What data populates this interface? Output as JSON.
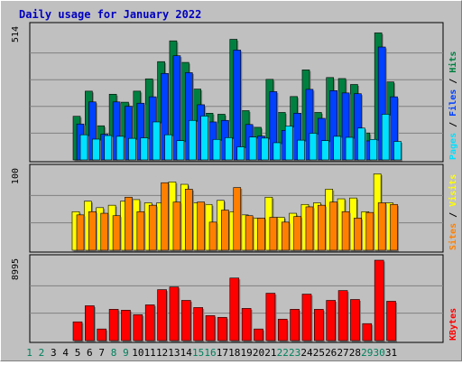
{
  "chart_data": {
    "type": "bar",
    "title": "Daily usage for January 2022",
    "colors": {
      "hits": "#008040",
      "files": "#0040ff",
      "pages": "#00e0ff",
      "visits": "#ffff00",
      "sites": "#ff8000",
      "kbytes": "#ff0000",
      "day_weekday": "#000000",
      "day_weekend": "#00805c"
    },
    "days": [
      {
        "label": "1",
        "weekend": true
      },
      {
        "label": "2",
        "weekend": true
      },
      {
        "label": "3",
        "weekend": false
      },
      {
        "label": "4",
        "weekend": false
      },
      {
        "label": "5",
        "weekend": false
      },
      {
        "label": "6",
        "weekend": false
      },
      {
        "label": "7",
        "weekend": false
      },
      {
        "label": "8",
        "weekend": true
      },
      {
        "label": "9",
        "weekend": true
      },
      {
        "label": "10",
        "weekend": false
      },
      {
        "label": "11",
        "weekend": false
      },
      {
        "label": "12",
        "weekend": false
      },
      {
        "label": "13",
        "weekend": false
      },
      {
        "label": "14",
        "weekend": false
      },
      {
        "label": "15",
        "weekend": true
      },
      {
        "label": "16",
        "weekend": true
      },
      {
        "label": "17",
        "weekend": false
      },
      {
        "label": "18",
        "weekend": false
      },
      {
        "label": "19",
        "weekend": false
      },
      {
        "label": "20",
        "weekend": false
      },
      {
        "label": "21",
        "weekend": false
      },
      {
        "label": "22",
        "weekend": true
      },
      {
        "label": "23",
        "weekend": true
      },
      {
        "label": "24",
        "weekend": false
      },
      {
        "label": "25",
        "weekend": false
      },
      {
        "label": "26",
        "weekend": false
      },
      {
        "label": "27",
        "weekend": false
      },
      {
        "label": "28",
        "weekend": false
      },
      {
        "label": "29",
        "weekend": true
      },
      {
        "label": "30",
        "weekend": true
      },
      {
        "label": "31",
        "weekend": false
      }
    ],
    "panels": [
      {
        "id": "hits",
        "ymax": 514,
        "ymax_label": "514",
        "legend": [
          {
            "text": "Pages",
            "color": "#00e0ff"
          },
          {
            "text": " / ",
            "color": "#000000"
          },
          {
            "text": "Files",
            "color": "#0040ff"
          },
          {
            "text": " / ",
            "color": "#000000"
          },
          {
            "text": "Hits",
            "color": "#008040"
          }
        ],
        "series": [
          {
            "name": "Hits",
            "values": [
              0,
              0,
              0,
              0,
              170,
              268,
              133,
              256,
              225,
              268,
              316,
              383,
              464,
              380,
              276,
              182,
              178,
              470,
              192,
              127,
              314,
              185,
              247,
              351,
              185,
              321,
              317,
              294,
              105,
              495,
              304
            ]
          },
          {
            "name": "Files",
            "values": [
              0,
              0,
              0,
              0,
              140,
              226,
              100,
              226,
              209,
              221,
              246,
              337,
              406,
              340,
              215,
              148,
              154,
              428,
              138,
              93,
              266,
              115,
              182,
              275,
              162,
              270,
              261,
              258,
              74,
              440,
              246
            ]
          },
          {
            "name": "Pages",
            "values": [
              0,
              0,
              0,
              0,
              98,
              81,
              95,
              92,
              84,
              86,
              148,
              98,
              75,
              154,
              171,
              80,
              87,
              51,
              89,
              85,
              67,
              132,
              77,
              104,
              75,
              92,
              88,
              124,
              80,
              178,
              72
            ]
          }
        ]
      },
      {
        "id": "visits",
        "ymax": 100,
        "ymax_label": "100",
        "legend": [
          {
            "text": "Sites",
            "color": "#ff8000"
          },
          {
            "text": " / ",
            "color": "#000000"
          },
          {
            "text": "Visits",
            "color": "#ffff00"
          }
        ],
        "series": [
          {
            "name": "Visits",
            "values": [
              0,
              0,
              0,
              0,
              48,
              61,
              53,
              56,
              61,
              63,
              59,
              59,
              85,
              82,
              59,
              57,
              62,
              48,
              44,
              40,
              66,
              41,
              46,
              57,
              59,
              76,
              64,
              65,
              48,
              95,
              59
            ]
          },
          {
            "name": "Sites",
            "values": [
              0,
              0,
              0,
              0,
              44,
              48,
              46,
              43,
              66,
              48,
              56,
              84,
              60,
              76,
              60,
              35,
              50,
              78,
              43,
              40,
              41,
              35,
              42,
              54,
              56,
              60,
              48,
              40,
              47,
              59,
              57
            ]
          }
        ]
      },
      {
        "id": "kbytes",
        "ymax": 8995,
        "ymax_label": "8995",
        "legend": [
          {
            "text": "KBytes",
            "color": "#ff0000"
          }
        ],
        "series": [
          {
            "name": "KBytes",
            "values": [
              0,
              0,
              0,
              0,
              2100,
              3900,
              1300,
              3500,
              3400,
              2900,
              4000,
              5700,
              6000,
              4500,
              3700,
              2800,
              2600,
              7000,
              3600,
              1300,
              5300,
              2400,
              3500,
              5200,
              3500,
              4500,
              5600,
              4600,
              1900,
              8995,
              4400
            ]
          }
        ]
      }
    ]
  }
}
